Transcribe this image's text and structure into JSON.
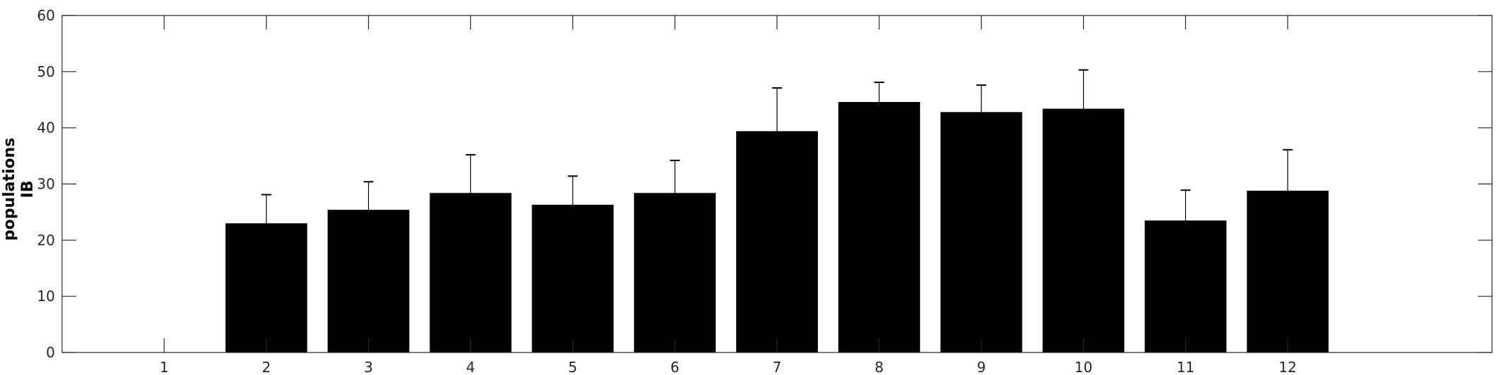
{
  "chart_data": {
    "type": "bar",
    "title": "",
    "xlabel": "",
    "ylabel_lines": [
      "populations",
      "IB"
    ],
    "categories": [
      "1",
      "2",
      "3",
      "4",
      "5",
      "6",
      "7",
      "8",
      "9",
      "10",
      "11",
      "12"
    ],
    "values": [
      0,
      23.0,
      25.4,
      28.4,
      26.3,
      28.4,
      39.4,
      44.6,
      42.8,
      43.4,
      23.5,
      28.8
    ],
    "error_upper": [
      null,
      5.1,
      5.0,
      6.8,
      5.1,
      5.8,
      7.7,
      3.5,
      4.8,
      6.9,
      5.4,
      7.3
    ],
    "ylim": [
      0,
      60
    ],
    "yticks": [
      0,
      10,
      20,
      30,
      40,
      50,
      60
    ],
    "xlim": [
      0,
      14
    ],
    "grid": false,
    "bar_color": "#000000",
    "axis_color": "#262626"
  }
}
